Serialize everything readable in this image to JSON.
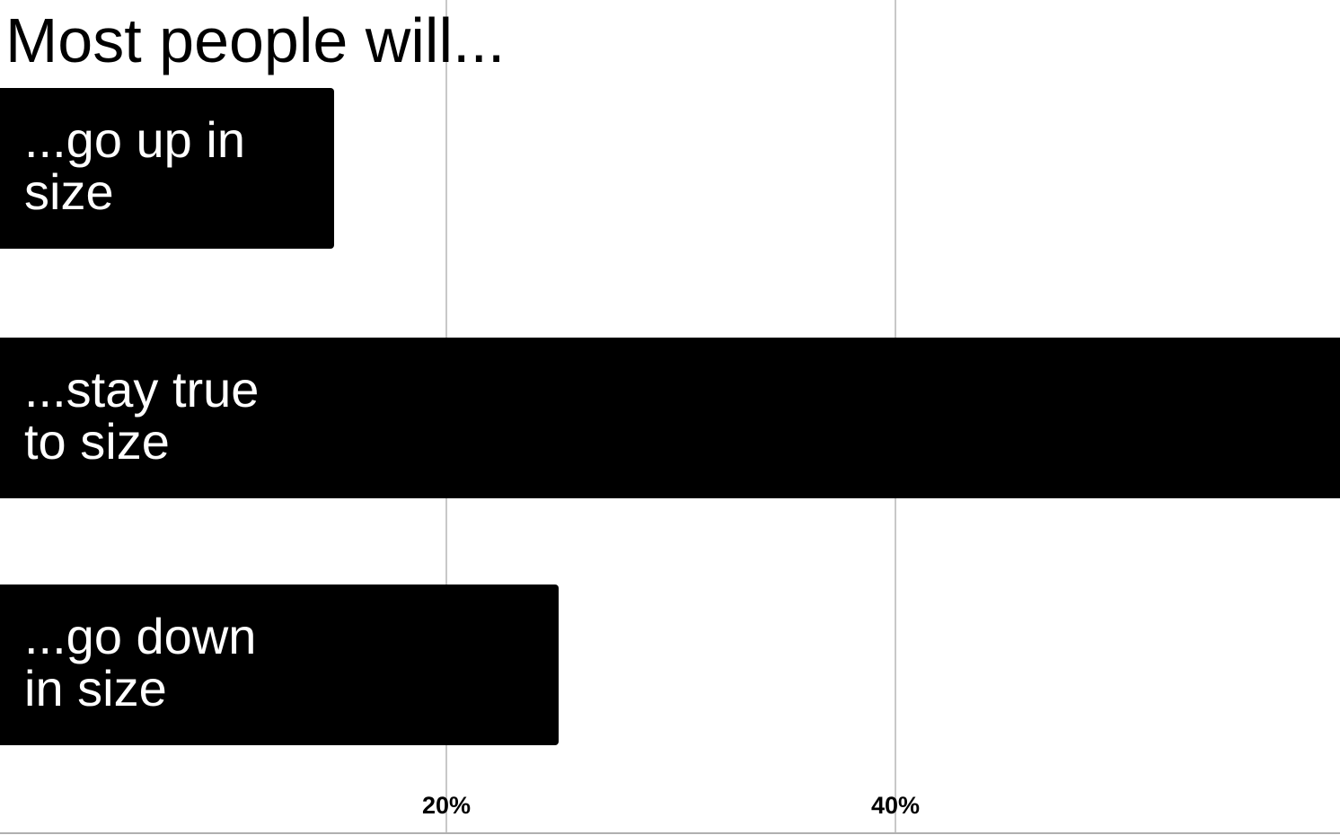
{
  "chart_data": {
    "type": "bar",
    "orientation": "horizontal",
    "title": "Most people will...",
    "xlabel": "",
    "ylabel": "",
    "categories": [
      [
        "...go up in",
        "size"
      ],
      [
        "...stay true",
        "to size"
      ],
      [
        "...go down",
        "in size"
      ]
    ],
    "values": [
      15,
      60,
      25
    ],
    "xlim": [
      0,
      60
    ],
    "x_ticks": [
      {
        "value": 20,
        "label": "20%"
      },
      {
        "value": 40,
        "label": "40%"
      }
    ],
    "unit": "%",
    "grid": true,
    "legend": "none",
    "colors": {
      "bar": "#000000",
      "bar_label": "#ffffff",
      "grid": "#c8c8c8",
      "axis": "#b0b0b0",
      "text": "#000000"
    }
  }
}
